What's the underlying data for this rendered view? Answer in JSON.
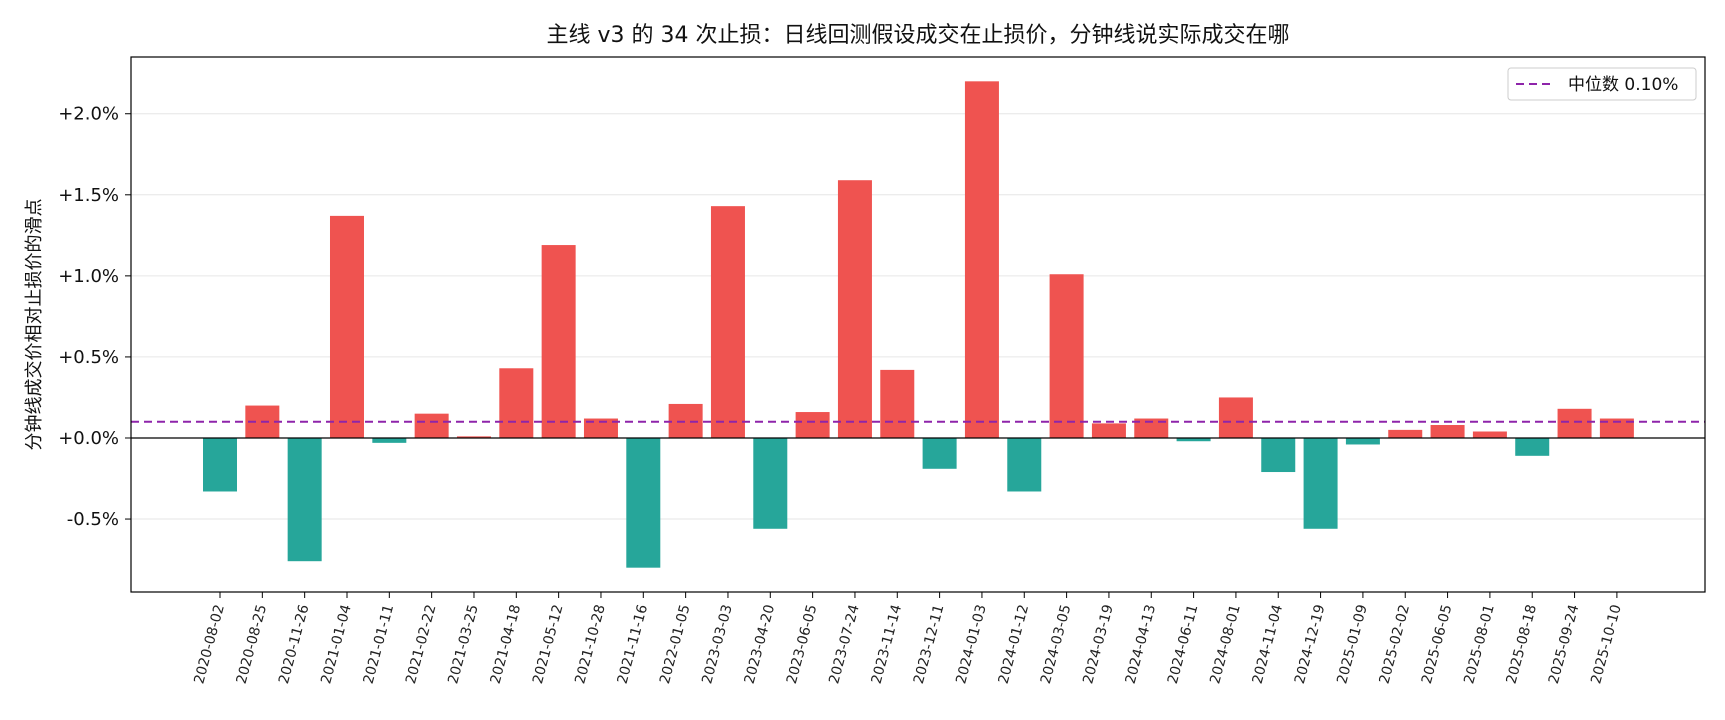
{
  "chart_data": {
    "type": "bar",
    "title": "主线 v3 的 34 次止损：日线回测假设成交在止损价，分钟线说实际成交在哪",
    "xlabel": "",
    "ylabel": "分钟线成交价相对止损价的滑点",
    "ylim": [
      -0.95,
      2.35
    ],
    "yticks": [
      -0.5,
      0.0,
      0.5,
      1.0,
      1.5,
      2.0
    ],
    "ytick_labels": [
      "-0.5%",
      "+0.0%",
      "+0.5%",
      "+1.0%",
      "+1.5%",
      "+2.0%"
    ],
    "categories": [
      "2020-08-02",
      "2020-08-25",
      "2020-11-26",
      "2021-01-04",
      "2021-01-11",
      "2021-02-22",
      "2021-03-25",
      "2021-04-18",
      "2021-05-12",
      "2021-10-28",
      "2021-11-16",
      "2022-01-05",
      "2023-03-03",
      "2023-04-20",
      "2023-06-05",
      "2023-07-24",
      "2023-11-14",
      "2023-12-11",
      "2024-01-03",
      "2024-01-12",
      "2024-03-05",
      "2024-03-19",
      "2024-04-13",
      "2024-06-11",
      "2024-08-01",
      "2024-11-04",
      "2024-12-19",
      "2025-01-09",
      "2025-02-02",
      "2025-06-05",
      "2025-08-01",
      "2025-08-18",
      "2025-09-24",
      "2025-10-10"
    ],
    "values": [
      -0.33,
      0.2,
      -0.76,
      1.37,
      -0.03,
      0.15,
      0.01,
      0.43,
      1.19,
      0.12,
      -0.8,
      0.21,
      1.43,
      -0.56,
      0.16,
      1.59,
      0.42,
      -0.19,
      2.2,
      -0.33,
      1.01,
      0.09,
      0.12,
      -0.02,
      0.25,
      -0.21,
      -0.56,
      -0.04,
      0.05,
      0.08,
      0.04,
      -0.11,
      0.18,
      0.12
    ],
    "median": 0.1,
    "legend": [
      {
        "label": "中位数 0.10%",
        "style": "dashed",
        "color": "#8e24aa"
      }
    ],
    "legend_position": "top-right",
    "grid": "horizontal",
    "colors": {
      "positive": "#ef5350",
      "negative": "#26a69a",
      "median": "#8e24aa",
      "zero_line": "#000000",
      "grid": "#e6e6e6"
    }
  }
}
